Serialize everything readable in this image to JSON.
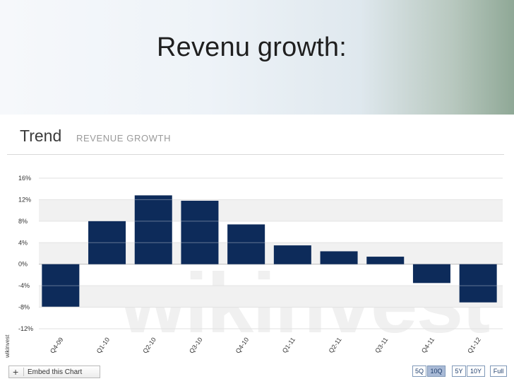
{
  "slide": {
    "title": "Revenu growth:"
  },
  "widget": {
    "title": "Trend",
    "subtitle": "REVENUE GROWTH",
    "watermark": "wikinvest",
    "side_brand": "wikinvest",
    "embed_label": "Embed this Chart",
    "range_buttons": [
      {
        "label": "5Q",
        "active": false
      },
      {
        "label": "10Q",
        "active": true
      },
      {
        "label": "5Y",
        "active": false
      },
      {
        "label": "10Y",
        "active": false
      },
      {
        "label": "Full",
        "active": false
      }
    ]
  },
  "chart_data": {
    "type": "bar",
    "title": "Trend",
    "subtitle": "REVENUE GROWTH",
    "categories": [
      "Q4-09",
      "Q1-10",
      "Q2-10",
      "Q3-10",
      "Q4-10",
      "Q1-11",
      "Q2-11",
      "Q3-11",
      "Q4-11",
      "Q1-12"
    ],
    "values": [
      -7.9,
      8.0,
      12.8,
      11.8,
      7.4,
      3.5,
      2.4,
      1.4,
      -3.5,
      -7.1
    ],
    "ylim": [
      -12,
      16
    ],
    "yticks": [
      16,
      12,
      8,
      4,
      0,
      -4,
      -8,
      -12
    ],
    "ytick_labels": [
      "16%",
      "12%",
      "8%",
      "4%",
      "0%",
      "-4%",
      "-8%",
      "-12%"
    ],
    "bar_color": "#0d2b5a",
    "grid": true
  }
}
